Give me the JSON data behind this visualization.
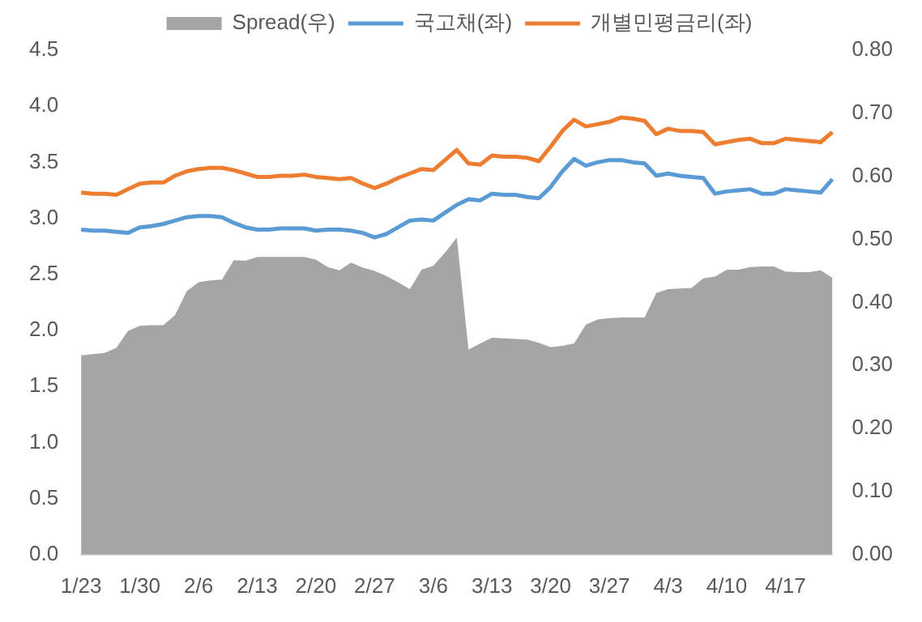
{
  "chart_data": {
    "type": "line",
    "categories": [
      "1/23",
      null,
      null,
      null,
      null,
      "1/30",
      null,
      null,
      null,
      null,
      "2/6",
      null,
      null,
      null,
      null,
      "2/13",
      null,
      null,
      null,
      null,
      "2/20",
      null,
      null,
      null,
      null,
      "2/27",
      null,
      null,
      null,
      null,
      "3/6",
      null,
      null,
      null,
      null,
      "3/13",
      null,
      null,
      null,
      null,
      "3/20",
      null,
      null,
      null,
      null,
      "3/27",
      null,
      null,
      null,
      null,
      "4/3",
      null,
      null,
      null,
      null,
      "4/10",
      null,
      null,
      null,
      null,
      "4/17",
      null,
      null,
      null,
      null
    ],
    "series": [
      {
        "name": "Spread(우)",
        "type": "area",
        "axis": "y2",
        "color": "#a5a5a5",
        "values": [
          0.316,
          0.318,
          0.32,
          0.328,
          0.355,
          0.363,
          0.364,
          0.364,
          0.38,
          0.418,
          0.432,
          0.435,
          0.436,
          0.467,
          0.466,
          0.472,
          0.472,
          0.472,
          0.472,
          0.472,
          0.468,
          0.456,
          0.451,
          0.463,
          0.455,
          0.45,
          0.442,
          0.432,
          0.421,
          0.452,
          0.458,
          0.479,
          0.503,
          0.325,
          0.335,
          0.344,
          0.343,
          0.342,
          0.341,
          0.336,
          0.329,
          0.331,
          0.335,
          0.365,
          0.373,
          0.375,
          0.376,
          0.376,
          0.376,
          0.415,
          0.421,
          0.422,
          0.423,
          0.438,
          0.441,
          0.452,
          0.452,
          0.456,
          0.457,
          0.457,
          0.449,
          0.448,
          0.448,
          0.451,
          0.439
        ]
      },
      {
        "name": "국고채(좌)",
        "type": "line",
        "color": "#5b9bd5",
        "values": [
          2.9,
          2.89,
          2.89,
          2.88,
          2.87,
          2.92,
          2.93,
          2.95,
          2.98,
          3.01,
          3.02,
          3.02,
          3.01,
          2.96,
          2.92,
          2.9,
          2.9,
          2.91,
          2.91,
          2.91,
          2.89,
          2.9,
          2.9,
          2.89,
          2.87,
          2.83,
          2.86,
          2.92,
          2.98,
          2.99,
          2.98,
          3.05,
          3.12,
          3.17,
          3.16,
          3.22,
          3.21,
          3.21,
          3.19,
          3.18,
          3.28,
          3.42,
          3.53,
          3.47,
          3.5,
          3.52,
          3.52,
          3.5,
          3.49,
          3.38,
          3.4,
          3.38,
          3.37,
          3.36,
          3.22,
          3.24,
          3.25,
          3.26,
          3.22,
          3.22,
          3.26,
          3.25,
          3.24,
          3.23,
          3.35
        ]
      },
      {
        "name": "개별민평금리(좌)",
        "type": "line",
        "color": "#ed7d31",
        "values": [
          3.23,
          3.22,
          3.22,
          3.21,
          3.26,
          3.31,
          3.32,
          3.32,
          3.38,
          3.42,
          3.44,
          3.45,
          3.45,
          3.43,
          3.4,
          3.37,
          3.37,
          3.38,
          3.38,
          3.39,
          3.37,
          3.36,
          3.35,
          3.36,
          3.31,
          3.27,
          3.31,
          3.36,
          3.4,
          3.44,
          3.43,
          3.52,
          3.61,
          3.49,
          3.48,
          3.56,
          3.55,
          3.55,
          3.54,
          3.51,
          3.64,
          3.78,
          3.88,
          3.82,
          3.84,
          3.86,
          3.9,
          3.89,
          3.87,
          3.75,
          3.8,
          3.78,
          3.78,
          3.77,
          3.66,
          3.68,
          3.7,
          3.71,
          3.67,
          3.67,
          3.71,
          3.7,
          3.69,
          3.68,
          3.77
        ]
      }
    ],
    "ylim": [
      0,
      4.5
    ],
    "yticks": [
      {
        "value": 0,
        "label": "0.0"
      },
      {
        "value": 0.5,
        "label": "0.5"
      },
      {
        "value": 1,
        "label": "1.0"
      },
      {
        "value": 1.5,
        "label": "1.5"
      },
      {
        "value": 2,
        "label": "2.0"
      },
      {
        "value": 2.5,
        "label": "2.5"
      },
      {
        "value": 3,
        "label": "3.0"
      },
      {
        "value": 3.5,
        "label": "3.5"
      },
      {
        "value": 4,
        "label": "4.0"
      },
      {
        "value": 4.5,
        "label": "4.5"
      }
    ],
    "y2lim": [
      0,
      0.8
    ],
    "y2ticks": [
      {
        "value": 0,
        "label": "0.00"
      },
      {
        "value": 0.1,
        "label": "0.10"
      },
      {
        "value": 0.2,
        "label": "0.20"
      },
      {
        "value": 0.3,
        "label": "0.30"
      },
      {
        "value": 0.4,
        "label": "0.40"
      },
      {
        "value": 0.5,
        "label": "0.50"
      },
      {
        "value": 0.6,
        "label": "0.60"
      },
      {
        "value": 0.7,
        "label": "0.70"
      },
      {
        "value": 0.8,
        "label": "0.80"
      }
    ],
    "grid": false,
    "legend": "top",
    "marker": "none",
    "line_style": "solid"
  }
}
